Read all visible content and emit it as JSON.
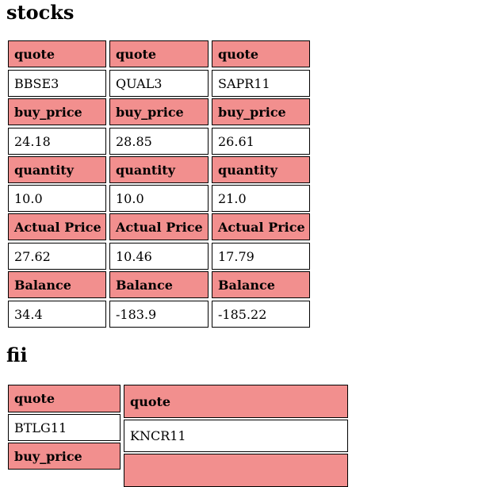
{
  "stocks": {
    "heading": "stocks",
    "columns": [
      {
        "rows": [
          {
            "label": "quote",
            "value": "BBSE3"
          },
          {
            "label": "buy_price",
            "value": "24.18"
          },
          {
            "label": "quantity",
            "value": "10.0"
          },
          {
            "label": "Actual Price",
            "value": "27.62"
          },
          {
            "label": "Balance",
            "value": "34.4"
          }
        ]
      },
      {
        "rows": [
          {
            "label": "quote",
            "value": "QUAL3"
          },
          {
            "label": "buy_price",
            "value": "28.85"
          },
          {
            "label": "quantity",
            "value": "10.0"
          },
          {
            "label": "Actual Price",
            "value": "10.46"
          },
          {
            "label": "Balance",
            "value": "-183.9"
          }
        ]
      },
      {
        "rows": [
          {
            "label": "quote",
            "value": "SAPR11"
          },
          {
            "label": "buy_price",
            "value": "26.61"
          },
          {
            "label": "quantity",
            "value": "21.0"
          },
          {
            "label": "Actual Price",
            "value": "17.79"
          },
          {
            "label": "Balance",
            "value": "-185.22"
          }
        ]
      }
    ]
  },
  "fii": {
    "heading": "fii",
    "columns": [
      {
        "rows": [
          {
            "label": "quote",
            "value": "BTLG11"
          },
          {
            "label": "buy_price",
            "value": ""
          }
        ]
      },
      {
        "rows": [
          {
            "label": "quote",
            "value": "KNCR11"
          },
          {
            "label": "",
            "value": ""
          }
        ]
      }
    ]
  }
}
